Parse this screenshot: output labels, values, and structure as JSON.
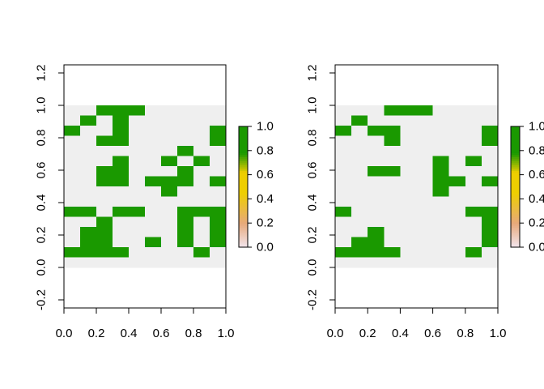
{
  "chart_data": [
    {
      "type": "heatmap",
      "title": "",
      "xlabel": "",
      "ylabel": "",
      "xlim": [
        0,
        1
      ],
      "ylim": [
        -0.25,
        1.25
      ],
      "xticks": [
        "0.0",
        "0.2",
        "0.4",
        "0.6",
        "0.8",
        "1.0"
      ],
      "yticks": [
        "-0.2",
        "0.0",
        "0.2",
        "0.4",
        "0.6",
        "0.8",
        "1.0",
        "1.2"
      ],
      "grid": {
        "ncol": 10,
        "nrow": 16,
        "x_range": [
          0,
          1
        ],
        "y_range": [
          0,
          1
        ]
      },
      "values": [
        [
          0,
          0,
          1,
          1,
          1,
          0,
          0,
          0,
          0,
          0
        ],
        [
          0,
          1,
          0,
          1,
          0,
          0,
          0,
          0,
          0,
          0
        ],
        [
          1,
          0,
          0,
          1,
          0,
          0,
          0,
          0,
          0,
          1
        ],
        [
          0,
          0,
          1,
          1,
          0,
          0,
          0,
          0,
          0,
          1
        ],
        [
          0,
          0,
          0,
          0,
          0,
          0,
          0,
          1,
          0,
          0
        ],
        [
          0,
          0,
          0,
          1,
          0,
          0,
          1,
          0,
          1,
          0
        ],
        [
          0,
          0,
          1,
          1,
          0,
          0,
          0,
          1,
          0,
          0
        ],
        [
          0,
          0,
          1,
          1,
          0,
          1,
          1,
          1,
          0,
          1
        ],
        [
          0,
          0,
          0,
          0,
          0,
          0,
          1,
          0,
          0,
          0
        ],
        [
          0,
          0,
          0,
          0,
          0,
          0,
          0,
          0,
          0,
          0
        ],
        [
          1,
          1,
          0,
          1,
          1,
          0,
          0,
          1,
          1,
          1
        ],
        [
          0,
          0,
          1,
          0,
          0,
          0,
          0,
          1,
          0,
          1
        ],
        [
          0,
          1,
          1,
          0,
          0,
          0,
          0,
          1,
          0,
          1
        ],
        [
          0,
          1,
          1,
          0,
          0,
          1,
          0,
          1,
          0,
          1
        ],
        [
          1,
          1,
          1,
          1,
          0,
          0,
          0,
          0,
          1,
          0
        ],
        [
          0,
          0,
          0,
          0,
          0,
          0,
          0,
          0,
          0,
          0
        ]
      ],
      "legend": {
        "ticks": [
          "0.0",
          "0.2",
          "0.4",
          "0.6",
          "0.8",
          "1.0"
        ],
        "range": [
          0,
          1
        ],
        "placement": "right"
      },
      "colors": {
        "high": "#1a9900",
        "low": "#efefef",
        "mid": "#eece00",
        "lowish": "#e7a97b",
        "bottom": "#f2e6ee"
      }
    },
    {
      "type": "heatmap",
      "title": "",
      "xlabel": "",
      "ylabel": "",
      "xlim": [
        0,
        1
      ],
      "ylim": [
        -0.25,
        1.25
      ],
      "xticks": [
        "0.0",
        "0.2",
        "0.4",
        "0.6",
        "0.8",
        "1.0"
      ],
      "yticks": [
        "-0.2",
        "0.0",
        "0.2",
        "0.4",
        "0.6",
        "0.8",
        "1.0",
        "1.2"
      ],
      "grid": {
        "ncol": 10,
        "nrow": 16,
        "x_range": [
          0,
          1
        ],
        "y_range": [
          0,
          1
        ]
      },
      "values": [
        [
          0,
          0,
          0,
          1,
          1,
          1,
          0,
          0,
          0,
          0
        ],
        [
          0,
          1,
          0,
          0,
          0,
          0,
          0,
          0,
          0,
          0
        ],
        [
          1,
          0,
          1,
          1,
          0,
          0,
          0,
          0,
          0,
          1
        ],
        [
          0,
          0,
          0,
          1,
          0,
          0,
          0,
          0,
          0,
          1
        ],
        [
          0,
          0,
          0,
          0,
          0,
          0,
          0,
          0,
          0,
          0
        ],
        [
          0,
          0,
          0,
          0,
          0,
          0,
          1,
          0,
          1,
          0
        ],
        [
          0,
          0,
          1,
          1,
          0,
          0,
          1,
          0,
          0,
          0
        ],
        [
          0,
          0,
          0,
          0,
          0,
          0,
          1,
          1,
          0,
          1
        ],
        [
          0,
          0,
          0,
          0,
          0,
          0,
          1,
          0,
          0,
          0
        ],
        [
          0,
          0,
          0,
          0,
          0,
          0,
          0,
          0,
          0,
          0
        ],
        [
          1,
          0,
          0,
          0,
          0,
          0,
          0,
          0,
          1,
          1
        ],
        [
          0,
          0,
          0,
          0,
          0,
          0,
          0,
          0,
          0,
          1
        ],
        [
          0,
          0,
          1,
          0,
          0,
          0,
          0,
          0,
          0,
          1
        ],
        [
          0,
          1,
          1,
          0,
          0,
          0,
          0,
          0,
          0,
          1
        ],
        [
          1,
          1,
          1,
          1,
          0,
          0,
          0,
          0,
          1,
          0
        ],
        [
          0,
          0,
          0,
          0,
          0,
          0,
          0,
          0,
          0,
          0
        ]
      ],
      "legend": {
        "ticks": [
          "0.0",
          "0.2",
          "0.4",
          "0.6",
          "0.8",
          "1.0"
        ],
        "range": [
          0,
          1
        ],
        "placement": "right"
      },
      "colors": {
        "high": "#1a9900",
        "low": "#efefef",
        "mid": "#eece00",
        "lowish": "#e7a97b",
        "bottom": "#f2e6ee"
      }
    }
  ]
}
